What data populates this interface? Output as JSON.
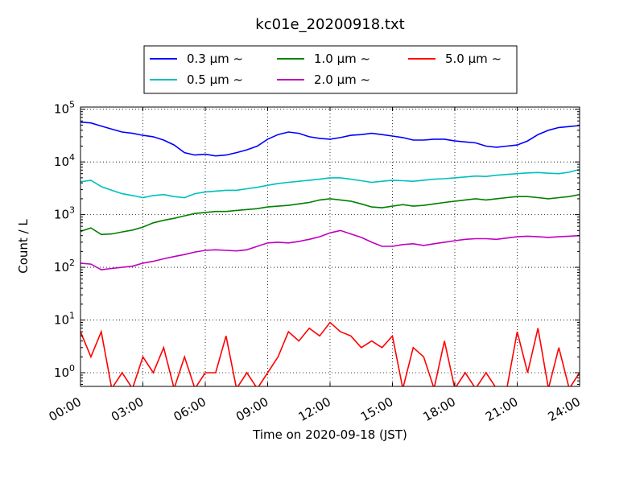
{
  "chart_data": {
    "type": "line",
    "title": "kc01e_20200918.txt",
    "xlabel": "Time on 2020-09-18 (JST)",
    "ylabel": "Count / L",
    "xlim": [
      "00:00",
      "24:00"
    ],
    "ylim": [
      0.55,
      110000
    ],
    "y_scale": "log",
    "grid": true,
    "legend": "top-center",
    "x_ticks": [
      "00:00",
      "03:00",
      "06:00",
      "09:00",
      "12:00",
      "15:00",
      "18:00",
      "21:00",
      "24:00"
    ],
    "y_ticks": [
      {
        "value": 1,
        "mantissa": "10",
        "exponent": "0"
      },
      {
        "value": 10,
        "mantissa": "10",
        "exponent": "1"
      },
      {
        "value": 100,
        "mantissa": "10",
        "exponent": "2"
      },
      {
        "value": 1000,
        "mantissa": "10",
        "exponent": "3"
      },
      {
        "value": 10000,
        "mantissa": "10",
        "exponent": "4"
      },
      {
        "value": 100000,
        "mantissa": "10",
        "exponent": "5"
      }
    ],
    "series": [
      {
        "name": "0.3 μm ~",
        "color": "#0000ff",
        "x": [
          "00:00",
          "00:30",
          "01:00",
          "01:30",
          "02:00",
          "02:30",
          "03:00",
          "03:30",
          "04:00",
          "04:30",
          "05:00",
          "05:30",
          "06:00",
          "06:30",
          "07:00",
          "07:30",
          "08:00",
          "08:30",
          "09:00",
          "09:30",
          "10:00",
          "10:30",
          "11:00",
          "11:30",
          "12:00",
          "12:30",
          "13:00",
          "13:30",
          "14:00",
          "14:30",
          "15:00",
          "15:30",
          "16:00",
          "16:30",
          "17:00",
          "17:30",
          "18:00",
          "18:30",
          "19:00",
          "19:30",
          "20:00",
          "20:30",
          "21:00",
          "21:30",
          "22:00",
          "22:30",
          "23:00",
          "23:30",
          "24:00"
        ],
        "values": [
          57000,
          55000,
          48000,
          42000,
          37000,
          35000,
          32000,
          30000,
          26000,
          21000,
          15000,
          13500,
          14000,
          13000,
          13500,
          15000,
          17000,
          20000,
          27000,
          33000,
          37000,
          35000,
          30000,
          28000,
          27000,
          29000,
          32000,
          33000,
          35000,
          33000,
          31000,
          29000,
          26000,
          26000,
          27000,
          27000,
          25000,
          24000,
          23000,
          20000,
          19000,
          20000,
          21000,
          25000,
          33000,
          40000,
          45000,
          47000,
          49000
        ]
      },
      {
        "name": "0.5 μm ~",
        "color": "#00bfbf",
        "x": [
          "00:00",
          "00:30",
          "01:00",
          "01:30",
          "02:00",
          "02:30",
          "03:00",
          "03:30",
          "04:00",
          "04:30",
          "05:00",
          "05:30",
          "06:00",
          "06:30",
          "07:00",
          "07:30",
          "08:00",
          "08:30",
          "09:00",
          "09:30",
          "10:00",
          "10:30",
          "11:00",
          "11:30",
          "12:00",
          "12:30",
          "13:00",
          "13:30",
          "14:00",
          "14:30",
          "15:00",
          "15:30",
          "16:00",
          "16:30",
          "17:00",
          "17:30",
          "18:00",
          "18:30",
          "19:00",
          "19:30",
          "20:00",
          "20:30",
          "21:00",
          "21:30",
          "22:00",
          "22:30",
          "23:00",
          "23:30",
          "24:00"
        ],
        "values": [
          4200,
          4500,
          3400,
          2900,
          2500,
          2300,
          2100,
          2300,
          2400,
          2200,
          2100,
          2500,
          2700,
          2800,
          2900,
          2900,
          3100,
          3300,
          3600,
          3900,
          4100,
          4300,
          4500,
          4700,
          5000,
          5000,
          4700,
          4400,
          4100,
          4300,
          4500,
          4400,
          4300,
          4500,
          4700,
          4800,
          5000,
          5200,
          5400,
          5300,
          5600,
          5800,
          6000,
          6200,
          6300,
          6100,
          6000,
          6400,
          7200
        ]
      },
      {
        "name": "1.0 μm ~",
        "color": "#008000",
        "x": [
          "00:00",
          "00:30",
          "01:00",
          "01:30",
          "02:00",
          "02:30",
          "03:00",
          "03:30",
          "04:00",
          "04:30",
          "05:00",
          "05:30",
          "06:00",
          "06:30",
          "07:00",
          "07:30",
          "08:00",
          "08:30",
          "09:00",
          "09:30",
          "10:00",
          "10:30",
          "11:00",
          "11:30",
          "12:00",
          "12:30",
          "13:00",
          "13:30",
          "14:00",
          "14:30",
          "15:00",
          "15:30",
          "16:00",
          "16:30",
          "17:00",
          "17:30",
          "18:00",
          "18:30",
          "19:00",
          "19:30",
          "20:00",
          "20:30",
          "21:00",
          "21:30",
          "22:00",
          "22:30",
          "23:00",
          "23:30",
          "24:00"
        ],
        "values": [
          480,
          560,
          420,
          430,
          470,
          510,
          580,
          700,
          780,
          850,
          950,
          1050,
          1100,
          1150,
          1150,
          1200,
          1250,
          1300,
          1400,
          1450,
          1500,
          1600,
          1700,
          1900,
          2000,
          1900,
          1800,
          1600,
          1400,
          1350,
          1450,
          1550,
          1450,
          1500,
          1600,
          1700,
          1800,
          1900,
          2000,
          1900,
          2000,
          2100,
          2200,
          2200,
          2100,
          2000,
          2100,
          2200,
          2400
        ]
      },
      {
        "name": "2.0 μm ~",
        "color": "#bf00bf",
        "x": [
          "00:00",
          "00:30",
          "01:00",
          "01:30",
          "02:00",
          "02:30",
          "03:00",
          "03:30",
          "04:00",
          "04:30",
          "05:00",
          "05:30",
          "06:00",
          "06:30",
          "07:00",
          "07:30",
          "08:00",
          "08:30",
          "09:00",
          "09:30",
          "10:00",
          "10:30",
          "11:00",
          "11:30",
          "12:00",
          "12:30",
          "13:00",
          "13:30",
          "14:00",
          "14:30",
          "15:00",
          "15:30",
          "16:00",
          "16:30",
          "17:00",
          "17:30",
          "18:00",
          "18:30",
          "19:00",
          "19:30",
          "20:00",
          "20:30",
          "21:00",
          "21:30",
          "22:00",
          "22:30",
          "23:00",
          "23:30",
          "24:00"
        ],
        "values": [
          120,
          115,
          90,
          95,
          100,
          105,
          120,
          130,
          145,
          160,
          175,
          195,
          210,
          215,
          210,
          205,
          215,
          250,
          290,
          300,
          290,
          310,
          340,
          380,
          450,
          500,
          430,
          370,
          300,
          250,
          250,
          270,
          280,
          260,
          280,
          300,
          320,
          340,
          350,
          350,
          340,
          360,
          380,
          390,
          380,
          370,
          380,
          390,
          400
        ]
      },
      {
        "name": "5.0 μm ~",
        "color": "#ff0000",
        "x": [
          "00:00",
          "00:30",
          "01:00",
          "01:30",
          "02:00",
          "02:30",
          "03:00",
          "03:30",
          "04:00",
          "04:30",
          "05:00",
          "05:30",
          "06:00",
          "06:30",
          "07:00",
          "07:30",
          "08:00",
          "08:30",
          "09:00",
          "09:30",
          "10:00",
          "10:30",
          "11:00",
          "11:30",
          "12:00",
          "12:30",
          "13:00",
          "13:30",
          "14:00",
          "14:30",
          "15:00",
          "15:30",
          "16:00",
          "16:30",
          "17:00",
          "17:30",
          "18:00",
          "18:30",
          "19:00",
          "19:30",
          "20:00",
          "20:30",
          "21:00",
          "21:30",
          "22:00",
          "22:30",
          "23:00",
          "23:30",
          "24:00"
        ],
        "values": [
          6,
          2,
          6,
          0.5,
          1,
          0.5,
          2,
          1,
          3,
          0.5,
          2,
          0.5,
          1,
          1,
          5,
          0.5,
          1,
          0.5,
          1,
          2,
          6,
          4,
          7,
          5,
          9,
          6,
          5,
          3,
          4,
          3,
          5,
          0.5,
          3,
          2,
          0.5,
          4,
          0.5,
          1,
          0.5,
          1,
          0.5,
          0.5,
          6,
          1,
          7,
          0.5,
          3,
          0.5,
          1
        ]
      }
    ]
  }
}
